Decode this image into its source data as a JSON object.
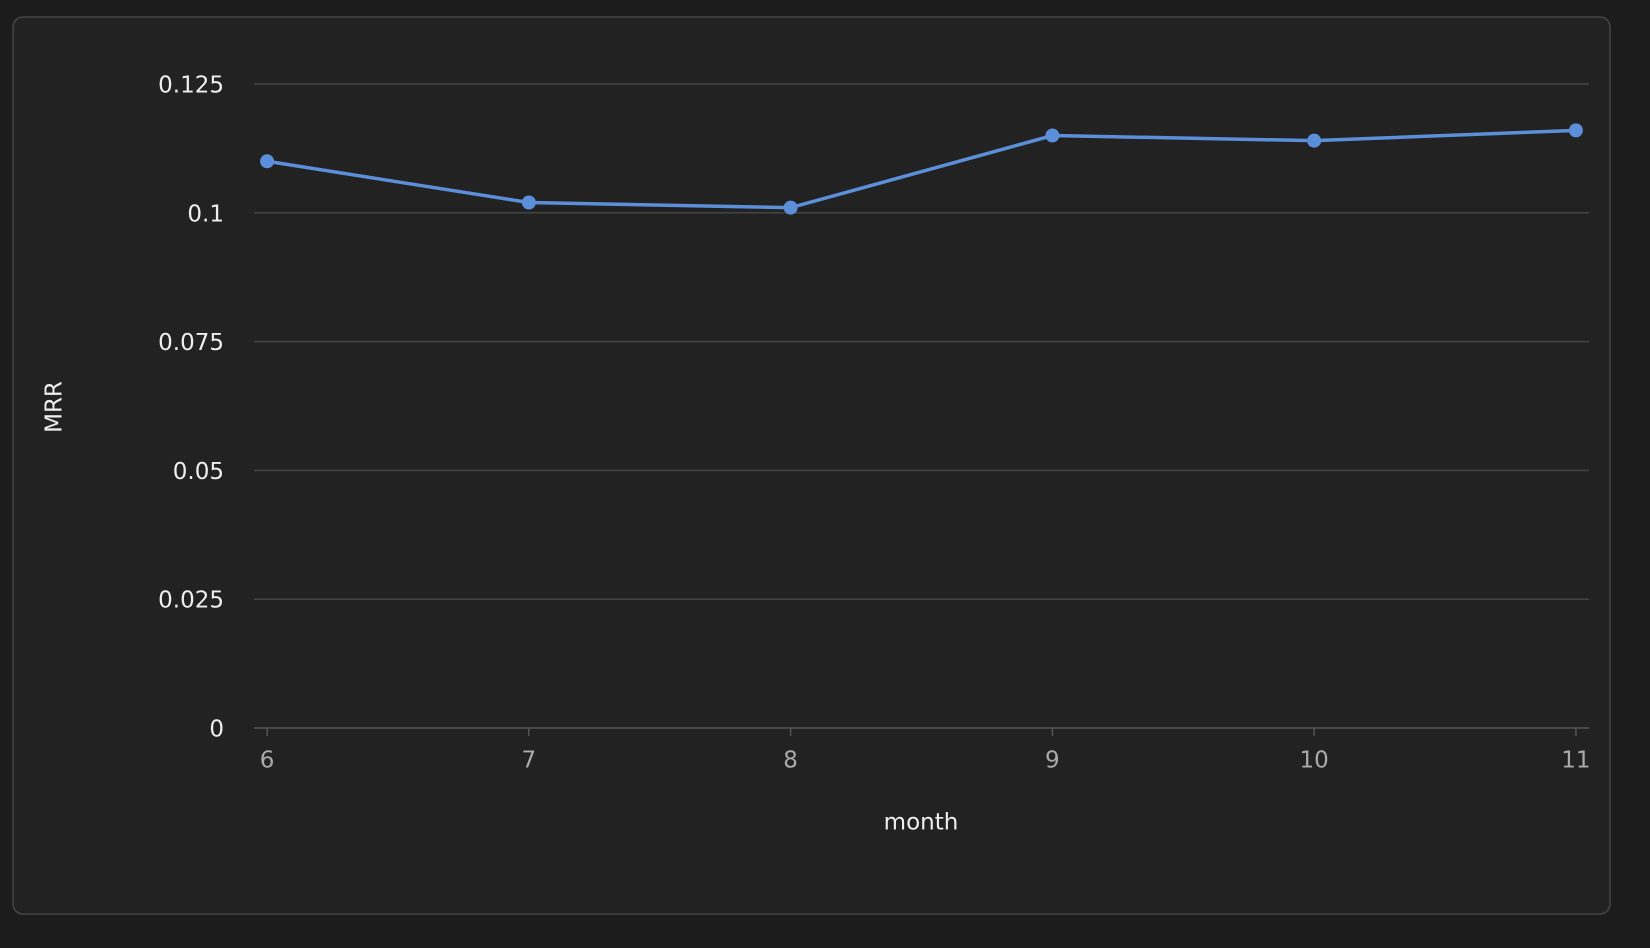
{
  "chart_data": {
    "type": "line",
    "x_label": "month",
    "y_label": "MRR",
    "x": [
      6,
      7,
      8,
      9,
      10,
      11
    ],
    "series": [
      {
        "name": "MRR",
        "color": "#5b8fd9",
        "values": [
          0.11,
          0.102,
          0.101,
          0.115,
          0.114,
          0.116
        ]
      }
    ],
    "xlim": [
      5.95,
      11.05
    ],
    "xticks": [
      6,
      7,
      8,
      9,
      10,
      11
    ],
    "ylim": [
      0,
      0.125
    ],
    "yticks": [
      0,
      0.025,
      0.05,
      0.075,
      0.1,
      0.125
    ],
    "grid": true
  }
}
